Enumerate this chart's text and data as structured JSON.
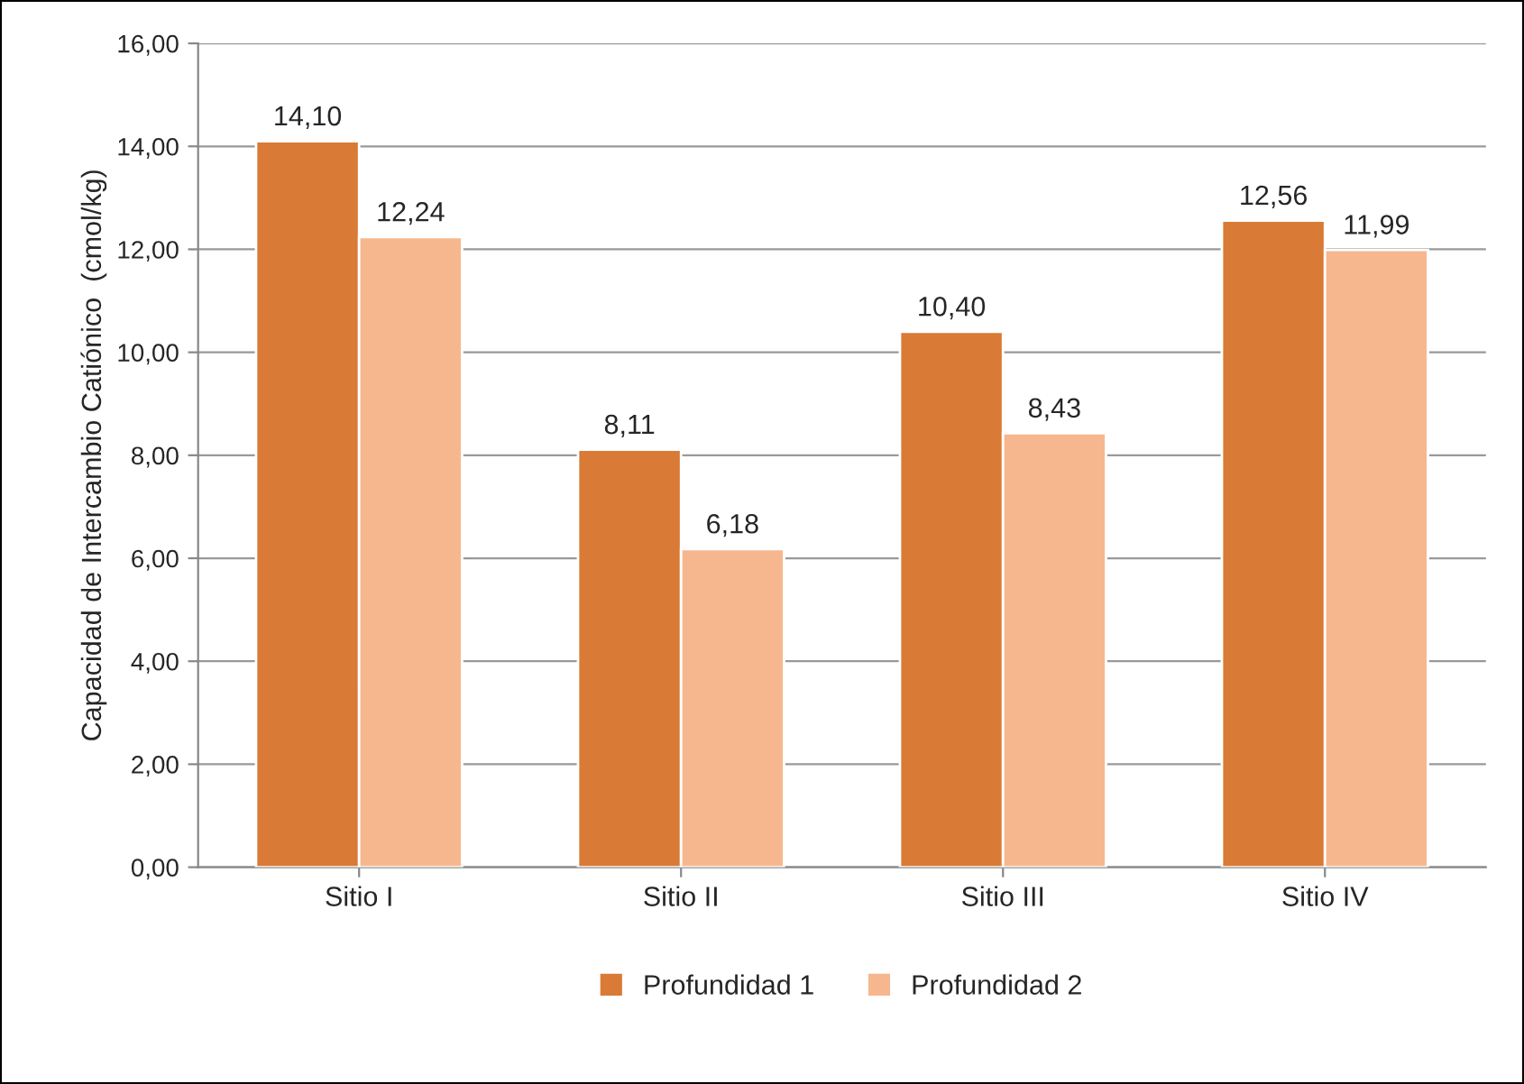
{
  "chart_data": {
    "type": "bar",
    "ylabel": "Capacidad de Intercambio Catiónico  (cmol/kg)",
    "categories": [
      "Sitio I",
      "Sitio II",
      "Sitio III",
      "Sitio IV"
    ],
    "series": [
      {
        "name": "Profundidad 1",
        "color": "#d97a36",
        "values": [
          14.1,
          8.11,
          10.4,
          12.56
        ],
        "value_labels": [
          "14,10",
          "8,11",
          "10,40",
          "12,56"
        ]
      },
      {
        "name": "Profundidad 2",
        "color": "#f7b78e",
        "values": [
          12.24,
          6.18,
          8.43,
          11.99
        ],
        "value_labels": [
          "12,24",
          "6,18",
          "8,43",
          "11,99"
        ]
      }
    ],
    "ylim": [
      0,
      16
    ],
    "yticks": [
      {
        "value": 0,
        "label": "0,00"
      },
      {
        "value": 2,
        "label": "2,00"
      },
      {
        "value": 4,
        "label": "4,00"
      },
      {
        "value": 6,
        "label": "6,00"
      },
      {
        "value": 8,
        "label": "8,00"
      },
      {
        "value": 10,
        "label": "10,00"
      },
      {
        "value": 12,
        "label": "12,00"
      },
      {
        "value": 14,
        "label": "14,00"
      },
      {
        "value": 16,
        "label": "16,00"
      }
    ],
    "grid": "y",
    "legend": "bottom"
  }
}
